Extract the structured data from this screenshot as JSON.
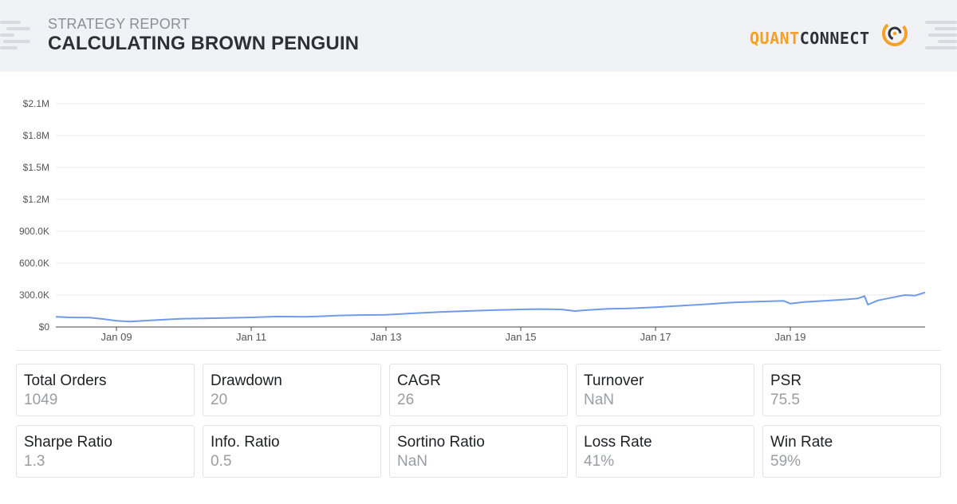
{
  "header": {
    "subtitle": "STRATEGY REPORT",
    "title": "CALCULATING BROWN PENGUIN",
    "logo_text_left": "QUANT",
    "logo_text_right": "CONNECT",
    "logo_icon": "quantconnect-logo-icon"
  },
  "colors": {
    "header_bg": "#f1f2f5",
    "line": "#6f9bea",
    "brand_orange": "#f5a026",
    "brand_dark": "#2f3035"
  },
  "chart_data": {
    "type": "line",
    "title": "",
    "xlabel": "",
    "ylabel": "",
    "ylim": [
      0,
      2100000
    ],
    "y_ticks": [
      "$0",
      "300.0K",
      "600.0K",
      "900.0K",
      "$1.2M",
      "$1.5M",
      "$1.8M",
      "$2.1M"
    ],
    "y_tick_values": [
      0,
      300000,
      600000,
      900000,
      1200000,
      1500000,
      1800000,
      2100000
    ],
    "x_ticks": [
      "Jan 09",
      "Jan 11",
      "Jan 13",
      "Jan 15",
      "Jan 17",
      "Jan 19"
    ],
    "x_tick_values": [
      2009.0,
      2011.0,
      2013.0,
      2015.0,
      2017.0,
      2019.0
    ],
    "xlim": [
      2008.1,
      2021.0
    ],
    "grid": true,
    "series": [
      {
        "name": "",
        "color": "#6f9bea",
        "x": [
          2008.1,
          2008.3,
          2008.6,
          2008.8,
          2009.0,
          2009.2,
          2009.5,
          2009.8,
          2010.0,
          2010.3,
          2010.6,
          2011.0,
          2011.4,
          2011.8,
          2012.0,
          2012.3,
          2012.6,
          2013.0,
          2013.4,
          2013.8,
          2014.2,
          2014.6,
          2015.0,
          2015.3,
          2015.6,
          2015.8,
          2016.0,
          2016.3,
          2016.6,
          2017.0,
          2017.4,
          2017.8,
          2018.0,
          2018.2,
          2018.5,
          2018.9,
          2019.0,
          2019.2,
          2019.5,
          2019.8,
          2020.0,
          2020.1,
          2020.15,
          2020.3,
          2020.5,
          2020.7,
          2020.85,
          2021.0
        ],
        "values": [
          95000,
          90000,
          88000,
          75000,
          58000,
          50000,
          62000,
          72000,
          78000,
          80000,
          85000,
          90000,
          98000,
          95000,
          100000,
          108000,
          112000,
          115000,
          128000,
          140000,
          150000,
          158000,
          165000,
          168000,
          165000,
          150000,
          160000,
          170000,
          175000,
          185000,
          200000,
          215000,
          225000,
          232000,
          238000,
          245000,
          220000,
          235000,
          245000,
          258000,
          268000,
          290000,
          210000,
          250000,
          275000,
          300000,
          295000,
          325000
        ]
      }
    ]
  },
  "stats": [
    {
      "label": "Total Orders",
      "value": "1049"
    },
    {
      "label": "Drawdown",
      "value": "20"
    },
    {
      "label": "CAGR",
      "value": "26"
    },
    {
      "label": "Turnover",
      "value": "NaN"
    },
    {
      "label": "PSR",
      "value": "75.5"
    },
    {
      "label": "Sharpe Ratio",
      "value": "1.3"
    },
    {
      "label": "Info. Ratio",
      "value": "0.5"
    },
    {
      "label": "Sortino Ratio",
      "value": "NaN"
    },
    {
      "label": "Loss Rate",
      "value": "41%"
    },
    {
      "label": "Win Rate",
      "value": "59%"
    }
  ]
}
